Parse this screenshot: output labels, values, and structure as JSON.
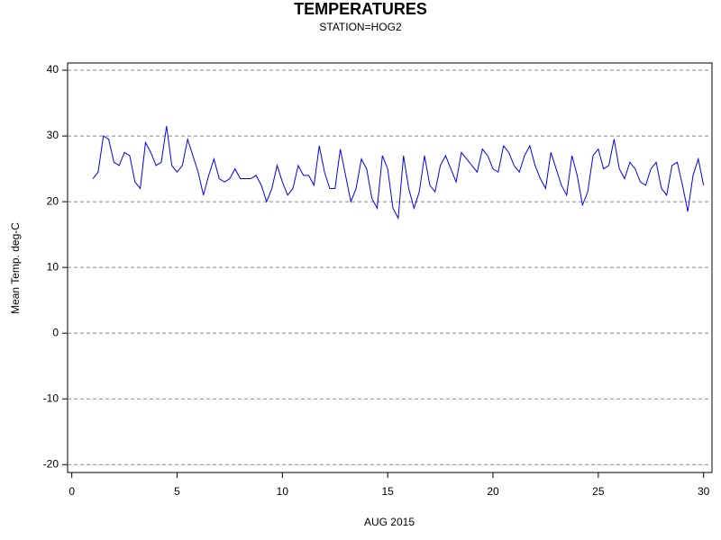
{
  "chart_data": {
    "type": "line",
    "title": "TEMPERATURES",
    "subtitle": "STATION=HOG2",
    "x_label": "AUG 2015",
    "y_label": "Mean Temp. deg-C",
    "color": "#0000ff",
    "grid": true,
    "xlim": [
      -0.2,
      30.4
    ],
    "ylim": [
      -21.2,
      41.1
    ],
    "xticks": [
      0,
      5,
      10,
      15,
      20,
      25,
      30
    ],
    "yticks": [
      -20,
      -10,
      0,
      10,
      20,
      30,
      40
    ],
    "x": [
      1,
      1.25,
      1.5,
      1.75,
      2,
      2.25,
      2.5,
      2.75,
      3,
      3.25,
      3.5,
      3.75,
      4,
      4.25,
      4.5,
      4.75,
      5,
      5.25,
      5.5,
      5.75,
      6,
      6.25,
      6.5,
      6.75,
      7,
      7.25,
      7.5,
      7.75,
      8,
      8.25,
      8.5,
      8.75,
      9,
      9.25,
      9.5,
      9.75,
      10,
      10.25,
      10.5,
      10.75,
      11,
      11.25,
      11.5,
      11.75,
      12,
      12.25,
      12.5,
      12.75,
      13,
      13.25,
      13.5,
      13.75,
      14,
      14.25,
      14.5,
      14.75,
      15,
      15.25,
      15.5,
      15.75,
      16,
      16.25,
      16.5,
      16.75,
      17,
      17.25,
      17.5,
      17.75,
      18,
      18.25,
      18.5,
      18.75,
      19,
      19.25,
      19.5,
      19.75,
      20,
      20.25,
      20.5,
      20.75,
      21,
      21.25,
      21.5,
      21.75,
      22,
      22.25,
      22.5,
      22.75,
      23,
      23.25,
      23.5,
      23.75,
      24,
      24.25,
      24.5,
      24.75,
      25,
      25.25,
      25.5,
      25.75,
      26,
      26.25,
      26.5,
      26.75,
      27,
      27.25,
      27.5,
      27.75,
      28,
      28.25,
      28.5,
      28.75,
      29,
      29.25,
      29.5,
      29.75,
      30
    ],
    "values": [
      23.5,
      24.5,
      30,
      29.5,
      26,
      25.5,
      27.5,
      27,
      23,
      22,
      29,
      27.5,
      25.5,
      26,
      31.5,
      25.5,
      24.5,
      25.5,
      29.5,
      27,
      24.5,
      21,
      24,
      26.5,
      23.5,
      23,
      23.5,
      25,
      23.5,
      23.5,
      23.5,
      24,
      22.5,
      20,
      22,
      25.5,
      23,
      21,
      22,
      25.5,
      24,
      24,
      22.5,
      28.5,
      24.5,
      22,
      22,
      28,
      24,
      20,
      22,
      26.5,
      25,
      20.5,
      19,
      27,
      25,
      19,
      17.5,
      27,
      22,
      19,
      21.5,
      27,
      22.5,
      21.5,
      25.5,
      27,
      25,
      23,
      27.5,
      26.5,
      25.5,
      24.5,
      28,
      27,
      25,
      24.5,
      28.5,
      27.5,
      25.5,
      24.5,
      27,
      28.5,
      25.5,
      23.5,
      22,
      27.5,
      25,
      22.5,
      21,
      27,
      24,
      19.5,
      21.5,
      27,
      28,
      25,
      25.5,
      29.5,
      25,
      23.5,
      26,
      25,
      23,
      22.5,
      25,
      26,
      22,
      21,
      25.5,
      26,
      22.5,
      18.5,
      24,
      26.5,
      22.5
    ]
  }
}
